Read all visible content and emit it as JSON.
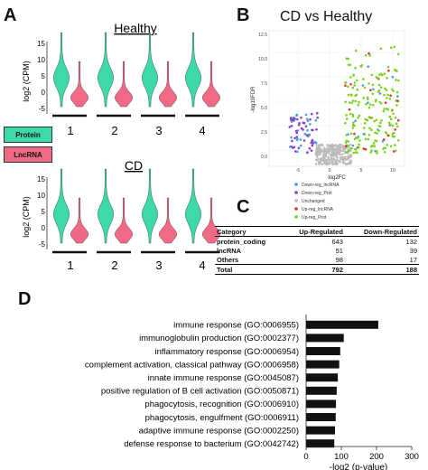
{
  "panels": {
    "A": "A",
    "B": "B",
    "C": "C",
    "D": "D"
  },
  "panelA": {
    "groups": [
      {
        "title": "Healthy",
        "ylabel": "log2 (CPM)",
        "yticks": [
          "15",
          "10",
          "5",
          "0",
          "-5"
        ],
        "xlabels": [
          "1",
          "2",
          "3",
          "4"
        ]
      },
      {
        "title": "CD",
        "ylabel": "log2 (CPM)",
        "yticks": [
          "15",
          "10",
          "5",
          "0",
          "-5"
        ],
        "xlabels": [
          "1",
          "2",
          "3",
          "4"
        ]
      }
    ],
    "legend": [
      {
        "label": "Protein",
        "color": "#3dd9a8"
      },
      {
        "label": "LncRNA",
        "color": "#f06a85"
      }
    ]
  },
  "panelB": {
    "title": "CD vs Healthy",
    "xlabel": "log2FC",
    "ylabel": "-log10FDR",
    "yticks": [
      "12.5",
      "10.0",
      "7.5",
      "5.0",
      "2.5",
      "0.0"
    ],
    "xticks": [
      "-5",
      "0",
      "5",
      "10"
    ],
    "legend": [
      {
        "label": "Down-reg_lncRNA",
        "color": "#3fa4d8"
      },
      {
        "label": "Down-reg_Prot",
        "color": "#8a3fd0"
      },
      {
        "label": "Unchanged",
        "color": "#bbbbbb"
      },
      {
        "label": "Up-reg_lncRNA",
        "color": "#e03030"
      },
      {
        "label": "Up-reg_Prot",
        "color": "#7ad320"
      }
    ]
  },
  "panelC": {
    "headers": [
      "Category",
      "Up-Regulated",
      "Down-Regulated"
    ],
    "rows": [
      [
        "protein_coding",
        "643",
        "132"
      ],
      [
        "lncRNA",
        "51",
        "39"
      ],
      [
        "Others",
        "98",
        "17"
      ]
    ],
    "total": [
      "Total",
      "792",
      "188"
    ]
  },
  "chart_data": {
    "type": "bar",
    "orientation": "horizontal",
    "categories": [
      "immune response (GO:0006955)",
      "immunoglobulin production (GO:0002377)",
      "inflammatory response (GO:0006954)",
      "complement activation, classical pathway (GO:0006958)",
      "innate immune response (GO:0045087)",
      "positive regulation of B cell activation (GO:0050871)",
      "phagocytosis, recognition (GO:0006910)",
      "phagocytosis, engulfment (GO:0006911)",
      "adaptive immune response (GO:0002250)",
      "defense response to bacterium (GO:0042742)"
    ],
    "values": [
      205,
      107,
      97,
      94,
      90,
      87,
      85,
      84,
      82,
      80
    ],
    "xlabel": "-log2 (p-value)",
    "xlim": [
      0,
      300
    ],
    "xticks": [
      "0",
      "100",
      "200",
      "300"
    ],
    "bar_color": "#111111"
  }
}
